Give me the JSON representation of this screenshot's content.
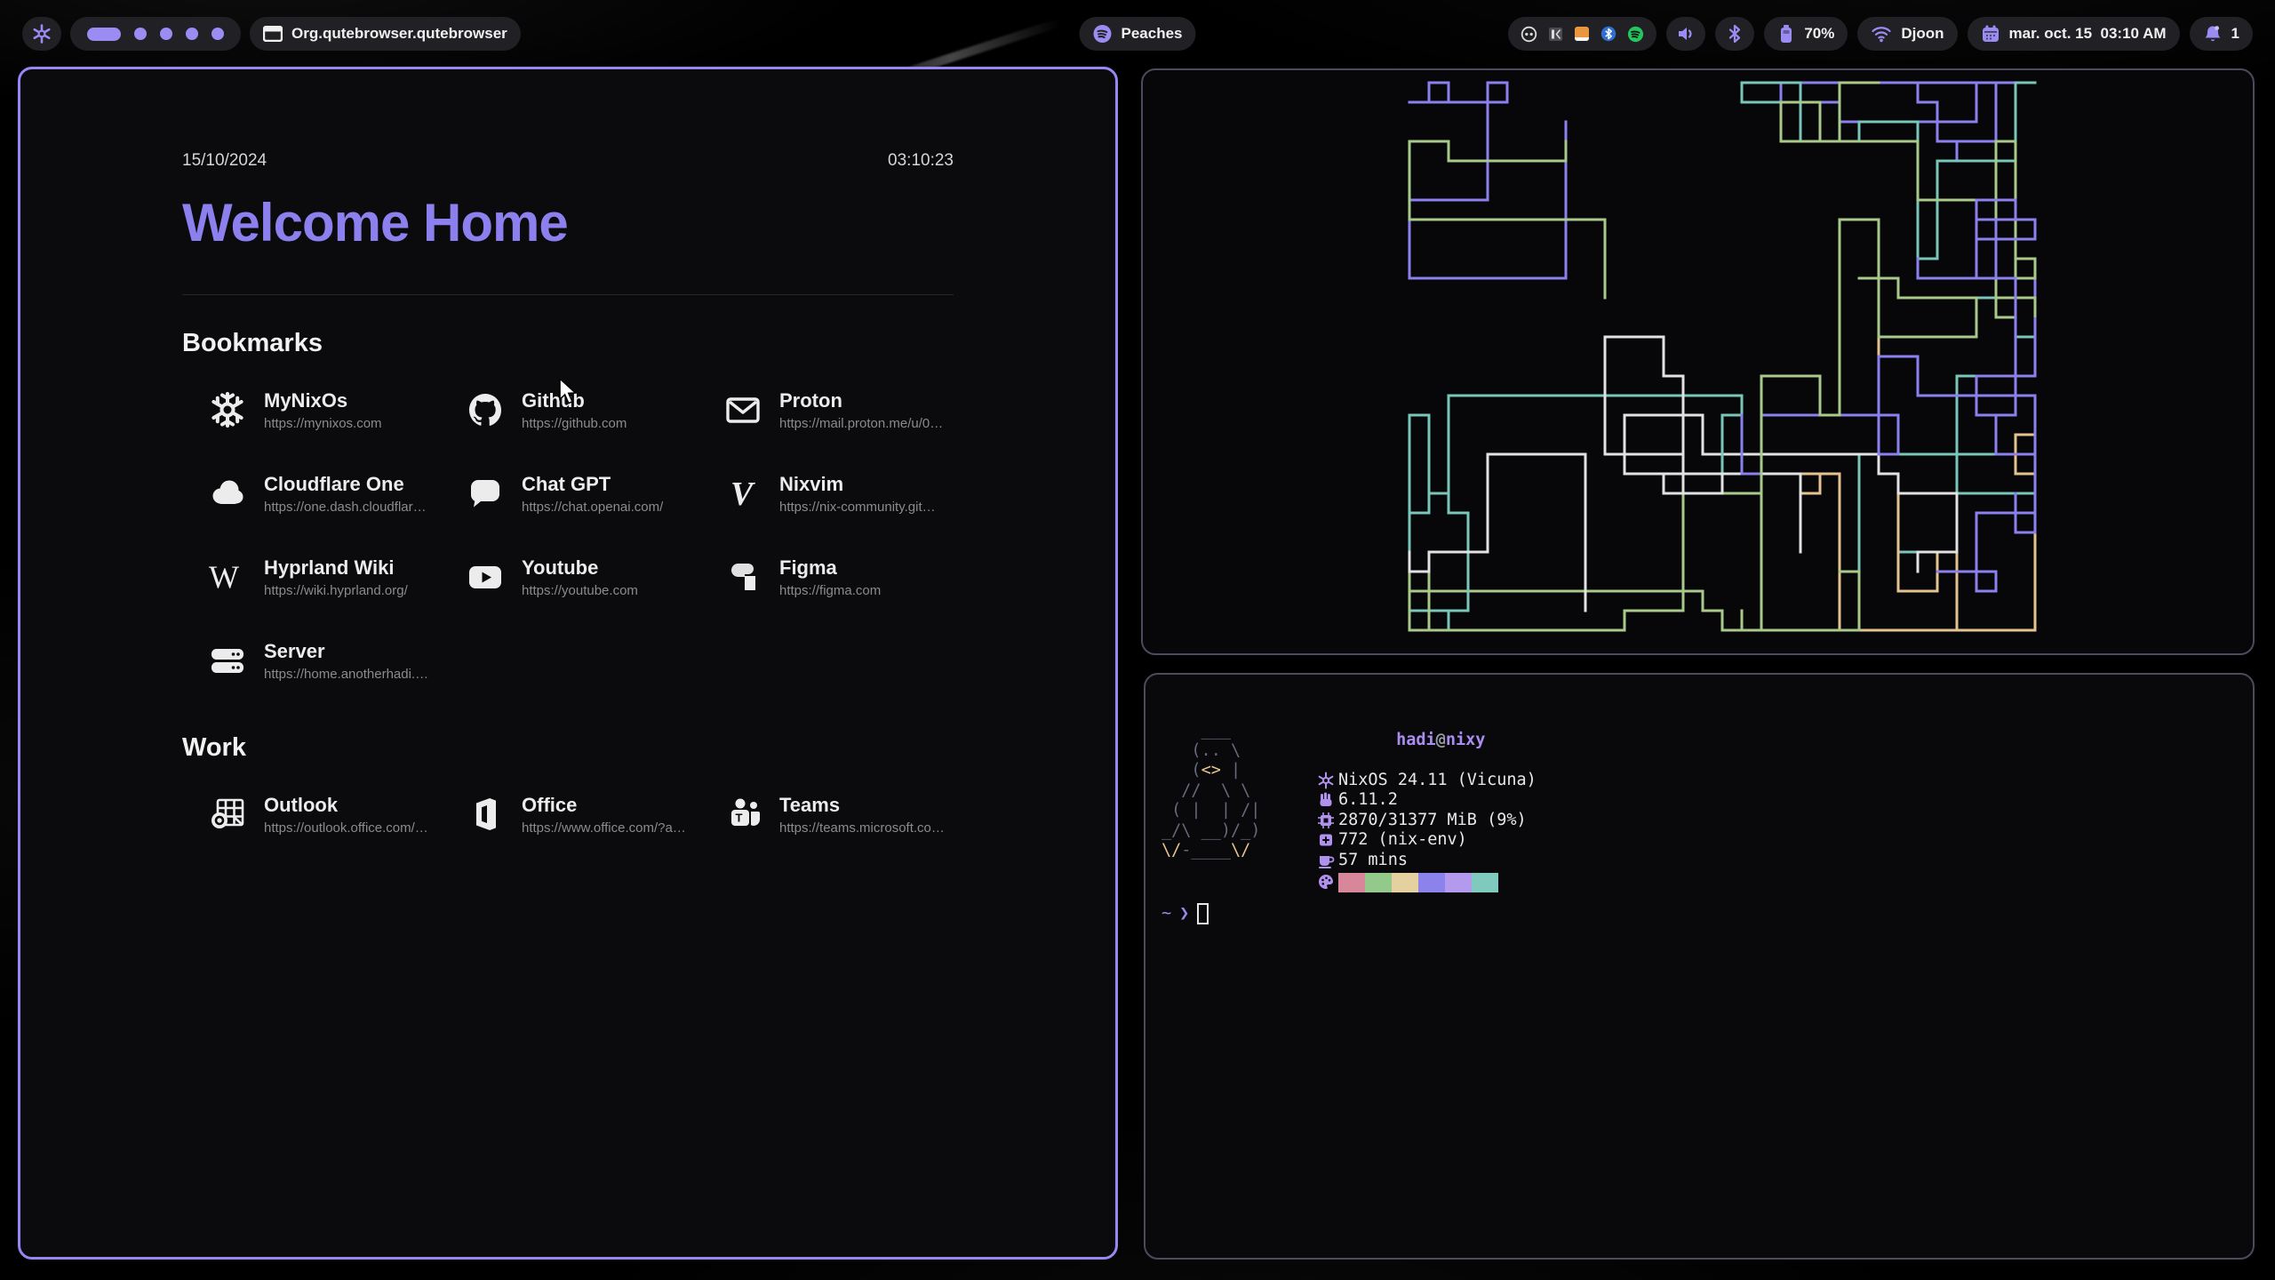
{
  "topbar": {
    "launcher_icon": "nixos-snowflake",
    "workspaces": {
      "active": 1,
      "total": 5
    },
    "window_title": "Org.qutebrowser.qutebrowser",
    "now_playing": {
      "label": "Peaches",
      "icon": "spotify"
    },
    "tray_icons": [
      "recorder",
      "keepassxc",
      "notes",
      "bluetooth",
      "spotify"
    ],
    "volume_icon": "speaker",
    "bluetooth_icon": "bluetooth",
    "battery": {
      "label": "70%",
      "icon": "battery"
    },
    "network": {
      "ssid": "Djoon",
      "icon": "wifi"
    },
    "clock": {
      "label": "mar. oct. 15  03:10 AM",
      "icon": "calendar"
    },
    "notifications": {
      "count": "1",
      "icon": "bell"
    },
    "accent": "#9a8cf2"
  },
  "startpage": {
    "date": "15/10/2024",
    "time": "03:10:23",
    "title": "Welcome Home",
    "title_color": "#8c80ef",
    "sections": [
      {
        "title": "Bookmarks",
        "items": [
          {
            "name": "MyNixOs",
            "url": "https://mynixos.com",
            "icon": "nixos"
          },
          {
            "name": "Github",
            "url": "https://github.com",
            "icon": "github"
          },
          {
            "name": "Proton",
            "url": "https://mail.proton.me/u/0…",
            "icon": "mail"
          },
          {
            "name": "Cloudflare One",
            "url": "https://one.dash.cloudflar…",
            "icon": "cloud"
          },
          {
            "name": "Chat GPT",
            "url": "https://chat.openai.com/",
            "icon": "chat"
          },
          {
            "name": "Nixvim",
            "url": "https://nix-community.git…",
            "icon": "vim"
          },
          {
            "name": "Hyprland Wiki",
            "url": "https://wiki.hyprland.org/",
            "icon": "wiki"
          },
          {
            "name": "Youtube",
            "url": "https://youtube.com",
            "icon": "youtube"
          },
          {
            "name": "Figma",
            "url": "https://figma.com",
            "icon": "figma"
          },
          {
            "name": "Server",
            "url": "https://home.anotherhadi.…",
            "icon": "server"
          }
        ]
      },
      {
        "title": "Work",
        "items": [
          {
            "name": "Outlook",
            "url": "https://outlook.office.com/…",
            "icon": "outlook"
          },
          {
            "name": "Office",
            "url": "https://www.office.com/?a…",
            "icon": "office"
          },
          {
            "name": "Teams",
            "url": "https://teams.microsoft.co…",
            "icon": "teams"
          }
        ]
      }
    ]
  },
  "pipes_art": {
    "seed": 20,
    "colors": [
      {
        "c": "#79c6ba",
        "w": 0.4
      },
      {
        "c": "#8b80ee",
        "w": 0.17
      },
      {
        "c": "#e2e2e2",
        "w": 0.13
      },
      {
        "c": "#a8c98a",
        "w": 0.15
      },
      {
        "c": "#e4c391",
        "w": 0.15
      }
    ]
  },
  "fastfetch": {
    "user": "hadi",
    "separator": "@",
    "host": "nixy",
    "user_color": "#ab8df0",
    "separator_color": "#9a9aa8",
    "icon_color": "#b091ee",
    "rows": [
      {
        "icon": "os",
        "text": "NixOS 24.11 (Vicuna)"
      },
      {
        "icon": "kernel",
        "text": "6.11.2"
      },
      {
        "icon": "memory",
        "text": "2870/31377 MiB (9%)"
      },
      {
        "icon": "packages",
        "text": "772 (nix-env)"
      },
      {
        "icon": "uptime",
        "text": "57 mins"
      }
    ],
    "palette": [
      "#d8879a",
      "#94c98c",
      "#e5d0a0",
      "#8b82ec",
      "#b49aec",
      "#7fc9bd"
    ],
    "ascii_art": {
      "base_color": "#68687f",
      "accent_color": "#e5c78e",
      "lines": [
        [
          {
            "t": "    ___",
            "c": "base"
          }
        ],
        [
          {
            "t": "   (.. \\",
            "c": "base"
          }
        ],
        [
          {
            "t": "   (",
            "c": "base"
          },
          {
            "t": "<>",
            "c": "accent"
          },
          {
            "t": " |",
            "c": "base"
          }
        ],
        [
          {
            "t": "  //  \\ \\",
            "c": "base"
          }
        ],
        [
          {
            "t": " ( |  | /|",
            "c": "base"
          }
        ],
        [
          {
            "t": "_/\\ __)/_)",
            "c": "base"
          }
        ],
        [
          {
            "t": "\\/",
            "c": "accent"
          },
          {
            "t": "-____",
            "c": "base"
          },
          {
            "t": "\\/",
            "c": "accent"
          }
        ]
      ]
    },
    "prompt": {
      "tilde": "~",
      "tilde_color": "#8c96e8",
      "chevron": "❯",
      "chevron_color": "#9a86f0"
    }
  }
}
